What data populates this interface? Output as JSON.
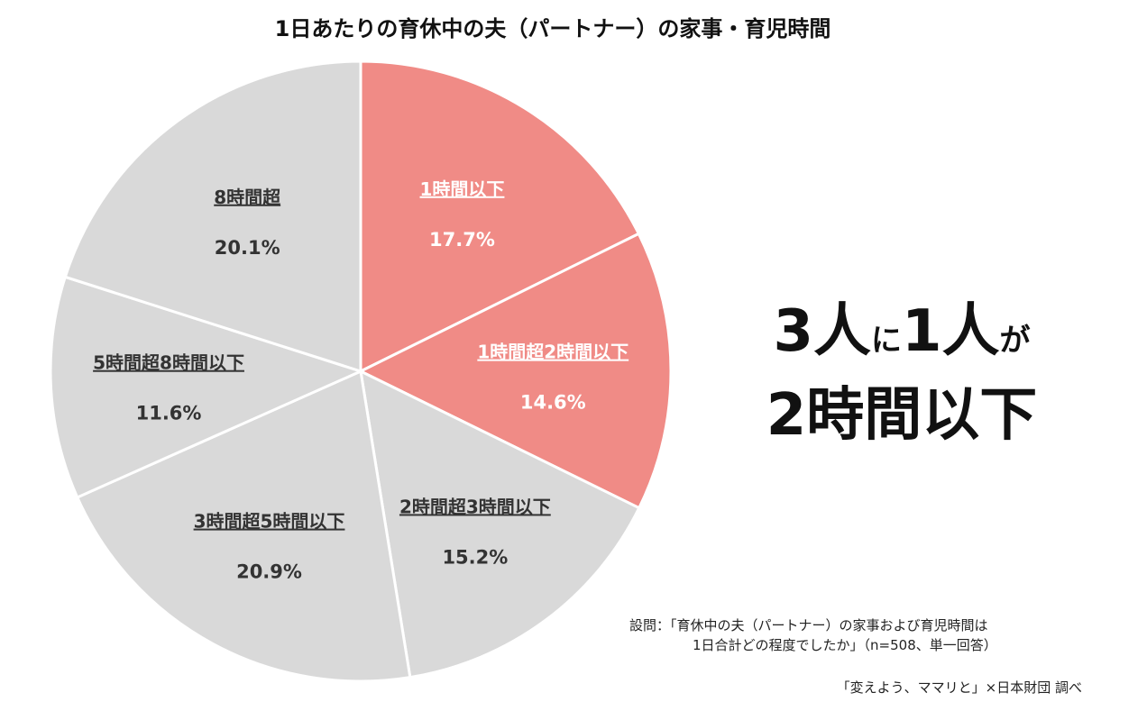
{
  "title": "1日あたりの育休中の夫（パートナー）の家事・育児時間",
  "chart_data": {
    "type": "pie",
    "title": "1日あたりの育休中の夫（パートナー）の家事・育児時間",
    "slices": [
      {
        "label": "1時間以下",
        "value": 17.7,
        "display": "17.7%",
        "color": "#f08b86",
        "text_color": "#ffffff"
      },
      {
        "label": "1時間超2時間以下",
        "value": 14.6,
        "display": "14.6%",
        "color": "#f08b86",
        "text_color": "#ffffff"
      },
      {
        "label": "2時間超3時間以下",
        "value": 15.2,
        "display": "15.2%",
        "color": "#d9d9d9",
        "text_color": "#333333"
      },
      {
        "label": "3時間超5時間以下",
        "value": 20.9,
        "display": "20.9%",
        "color": "#d9d9d9",
        "text_color": "#333333"
      },
      {
        "label": "5時間超8時間以下",
        "value": 11.6,
        "display": "11.6%",
        "color": "#d9d9d9",
        "text_color": "#333333"
      },
      {
        "label": "8時間超",
        "value": 20.1,
        "display": "20.1%",
        "color": "#d9d9d9",
        "text_color": "#333333"
      }
    ],
    "start_angle": "12 o'clock",
    "direction": "clockwise",
    "border_color": "#ffffff"
  },
  "headline": {
    "line1_a": "3人",
    "line1_b": "に",
    "line1_c": "1人",
    "line1_d": "が",
    "line2": "2時間以下"
  },
  "note": {
    "line1": "設問：「育休中の夫（パートナー）の家事および育児時間は",
    "line2": "1日合計どの程度でしたか」（n=508、単一回答）"
  },
  "source": "「変えよう、ママリと」×日本財団 調べ"
}
